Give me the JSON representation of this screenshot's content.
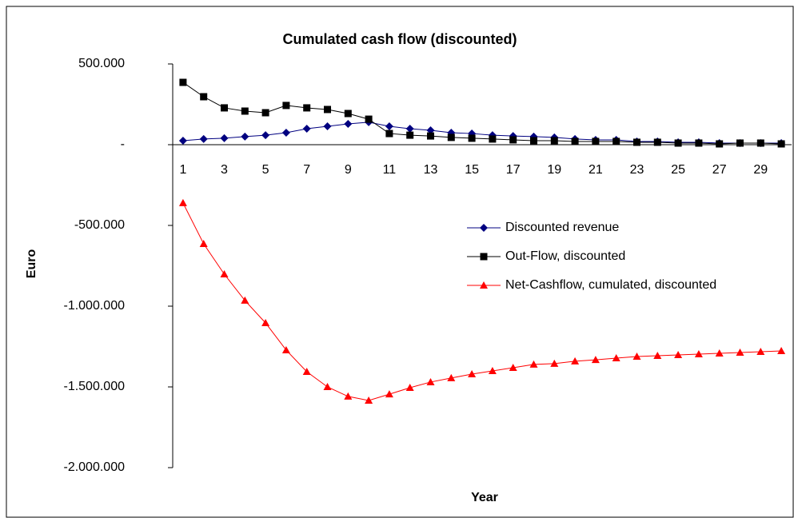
{
  "chart_data": {
    "type": "line",
    "title": "Cumulated cash flow (discounted)",
    "x_label": "Year",
    "y_label": "Euro",
    "categories": [
      1,
      null,
      3,
      null,
      5,
      null,
      7,
      null,
      9,
      null,
      11,
      null,
      13,
      null,
      15,
      null,
      17,
      null,
      19,
      null,
      21,
      null,
      23,
      null,
      25,
      null,
      27,
      null,
      29,
      null
    ],
    "ylim": [
      -2000000,
      500000
    ],
    "yticks": [
      {
        "value": -2000000,
        "label": "-2.000.000"
      },
      {
        "value": -1500000,
        "label": "-1.500.000"
      },
      {
        "value": -1000000,
        "label": "-1.000.000"
      },
      {
        "value": -500000,
        "label": "-500.000"
      },
      {
        "value": 0,
        "label": "-"
      },
      {
        "value": 500000,
        "label": "500.000"
      }
    ],
    "grid": false,
    "legend": "right",
    "series": [
      {
        "name": "Discounted revenue",
        "color": "#000080",
        "marker": "diamond",
        "values": [
          25000,
          35000,
          40000,
          50000,
          59000,
          74000,
          99000,
          114000,
          129000,
          139000,
          114000,
          99000,
          89000,
          74000,
          69000,
          59000,
          54000,
          50000,
          45000,
          35000,
          30000,
          30000,
          20000,
          20000,
          15000,
          15000,
          10000,
          10000,
          10000,
          10000
        ]
      },
      {
        "name": "Out-Flow, discounted",
        "color": "#000000",
        "marker": "square",
        "values": [
          386000,
          297000,
          228000,
          208000,
          198000,
          243000,
          228000,
          218000,
          193000,
          158000,
          69000,
          59000,
          54000,
          45000,
          40000,
          35000,
          30000,
          25000,
          25000,
          20000,
          20000,
          20000,
          15000,
          15000,
          10000,
          10000,
          5000,
          10000,
          10000,
          5000
        ]
      },
      {
        "name": "Net-Cashflow, cumulated, discounted",
        "color": "#ff0000",
        "marker": "triangle",
        "values": [
          -361000,
          -614000,
          -802000,
          -965000,
          -1104000,
          -1272000,
          -1406000,
          -1500000,
          -1559000,
          -1584000,
          -1545000,
          -1505000,
          -1470000,
          -1445000,
          -1421000,
          -1401000,
          -1381000,
          -1361000,
          -1356000,
          -1341000,
          -1332000,
          -1322000,
          -1312000,
          -1307000,
          -1302000,
          -1297000,
          -1292000,
          -1287000,
          -1282000,
          -1277000
        ]
      }
    ]
  }
}
